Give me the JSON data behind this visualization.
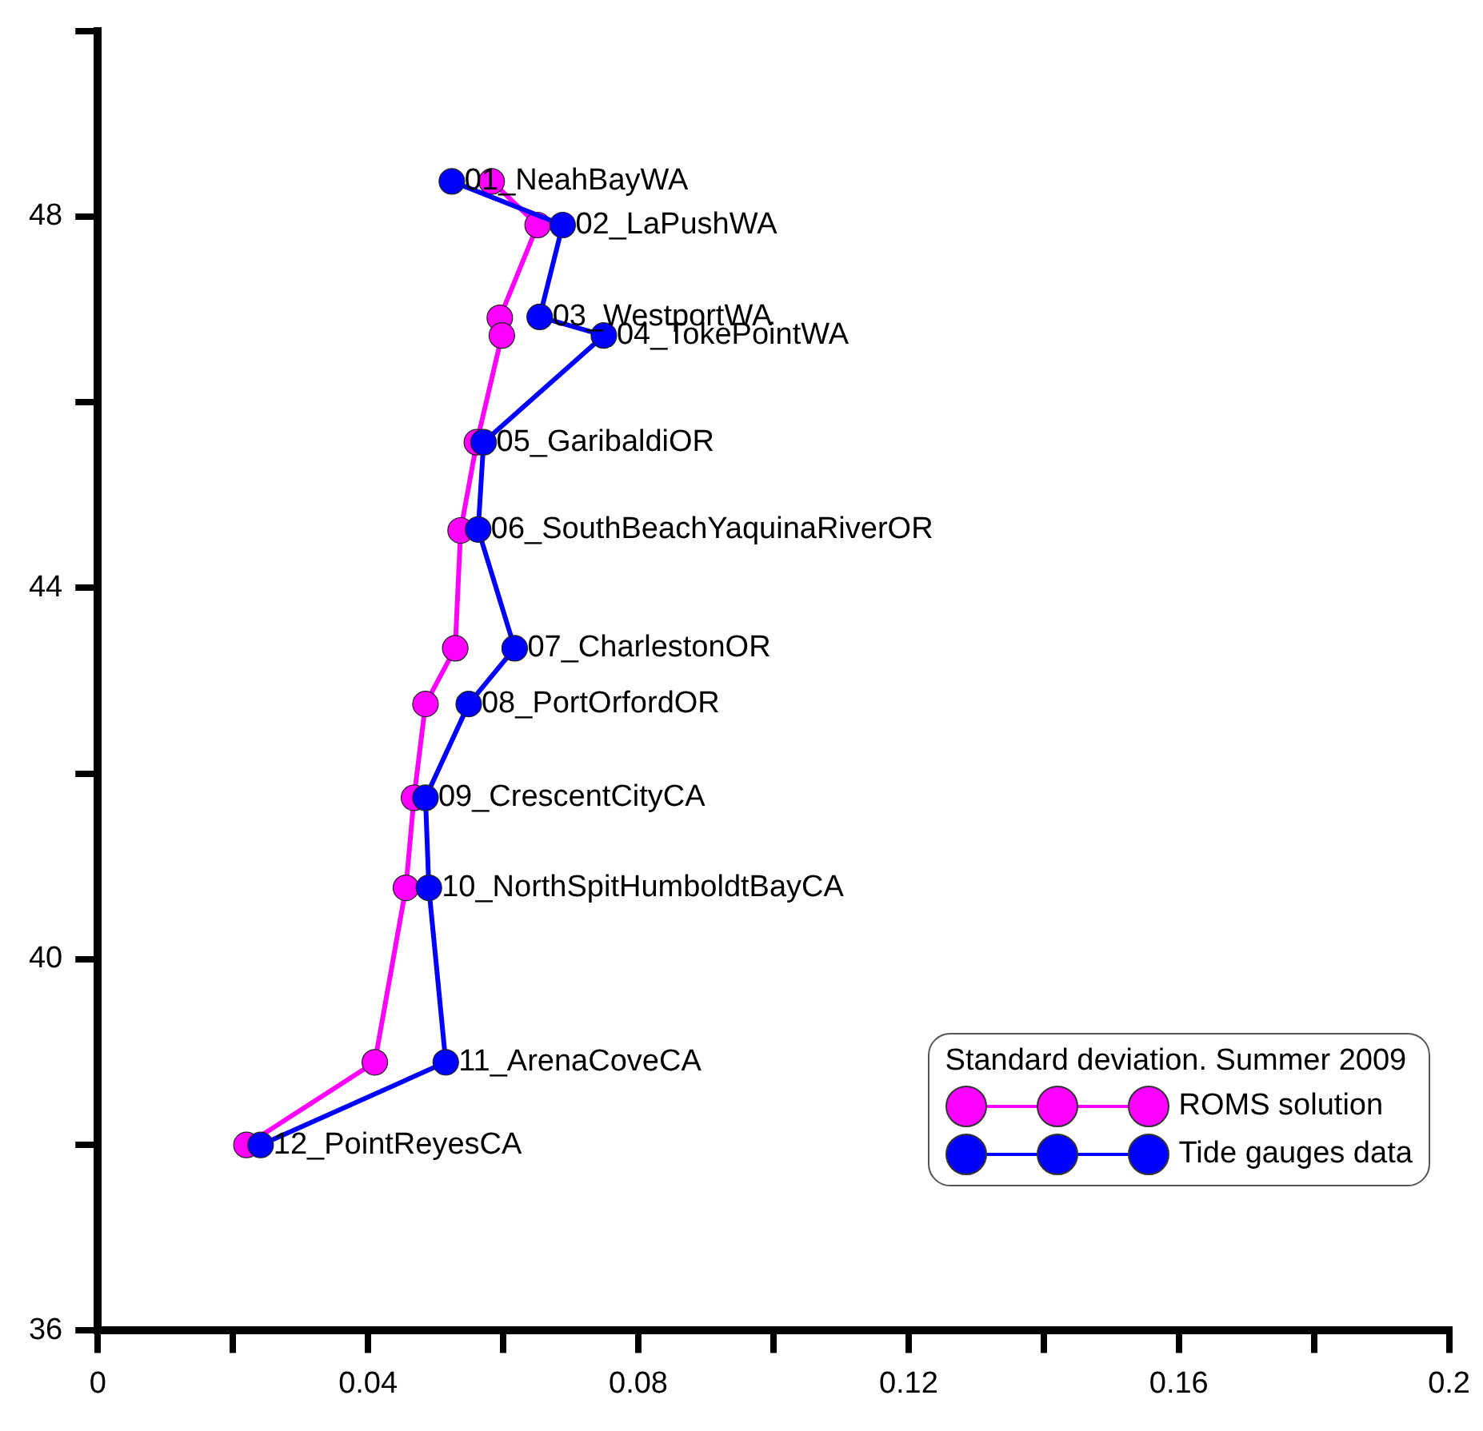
{
  "chart_data": {
    "type": "line",
    "legend_title": "Standard deviation. Summer 2009",
    "legend": "bottom right",
    "grid": false,
    "marker": "circle",
    "line_style": "solid",
    "xlim": [
      0,
      0.2
    ],
    "xticks": [
      0,
      {
        "value": 0.02,
        "label": null
      },
      0.04,
      {
        "value": 0.06,
        "label": null
      },
      0.08,
      {
        "value": 0.1,
        "label": null
      },
      0.12,
      {
        "value": 0.14,
        "label": null
      },
      0.16,
      {
        "value": 0.18,
        "label": null
      },
      0.2
    ],
    "ylim": [
      36,
      50
    ],
    "yticks": [
      36,
      {
        "value": 38,
        "label": null
      },
      40,
      {
        "value": 42,
        "label": null
      },
      44,
      {
        "value": 46,
        "label": null
      },
      48,
      {
        "value": 50,
        "label": null
      }
    ],
    "series": [
      {
        "name": "ROMS solution",
        "color": "#ff00ff",
        "x": [
          0.0583,
          0.0651,
          0.0595,
          0.0598,
          0.0561,
          0.0537,
          0.0529,
          0.0485,
          0.0468,
          0.0456,
          0.041,
          0.022
        ],
        "values": [
          48.38,
          47.91,
          46.91,
          46.72,
          45.57,
          44.62,
          43.35,
          42.75,
          41.74,
          40.77,
          38.89,
          38.0
        ]
      },
      {
        "name": "Tide gauges data",
        "color": "#0000ff",
        "x": [
          0.0524,
          0.0688,
          0.0654,
          0.0749,
          0.0571,
          0.0563,
          0.0617,
          0.0549,
          0.0485,
          0.049,
          0.0515,
          0.0241
        ],
        "values": [
          48.38,
          47.91,
          46.92,
          46.72,
          45.57,
          44.63,
          43.35,
          42.75,
          41.74,
          40.77,
          38.89,
          38.0
        ]
      }
    ],
    "annotations": [
      {
        "text": "01_NeahBayWA",
        "x": 0.0524,
        "y": 48.38
      },
      {
        "text": "02_LaPushWA",
        "x": 0.0688,
        "y": 47.91
      },
      {
        "text": "03_WestportWA",
        "x": 0.0654,
        "y": 46.92
      },
      {
        "text": "04_TokePointWA",
        "x": 0.0749,
        "y": 46.72
      },
      {
        "text": "05_GaribaldiOR",
        "x": 0.0571,
        "y": 45.57
      },
      {
        "text": "06_SouthBeachYaquinaRiverOR",
        "x": 0.0563,
        "y": 44.63
      },
      {
        "text": "07_CharlestonOR",
        "x": 0.0617,
        "y": 43.35
      },
      {
        "text": "08_PortOrfordOR",
        "x": 0.0549,
        "y": 42.75
      },
      {
        "text": "09_CrescentCityCA",
        "x": 0.0485,
        "y": 41.74
      },
      {
        "text": "10_NorthSpitHumboldtBayCA",
        "x": 0.049,
        "y": 40.77
      },
      {
        "text": "11_ArenaCoveCA",
        "x": 0.0515,
        "y": 38.89
      },
      {
        "text": "12_PointReyesCA",
        "x": 0.0241,
        "y": 38.0
      }
    ]
  }
}
